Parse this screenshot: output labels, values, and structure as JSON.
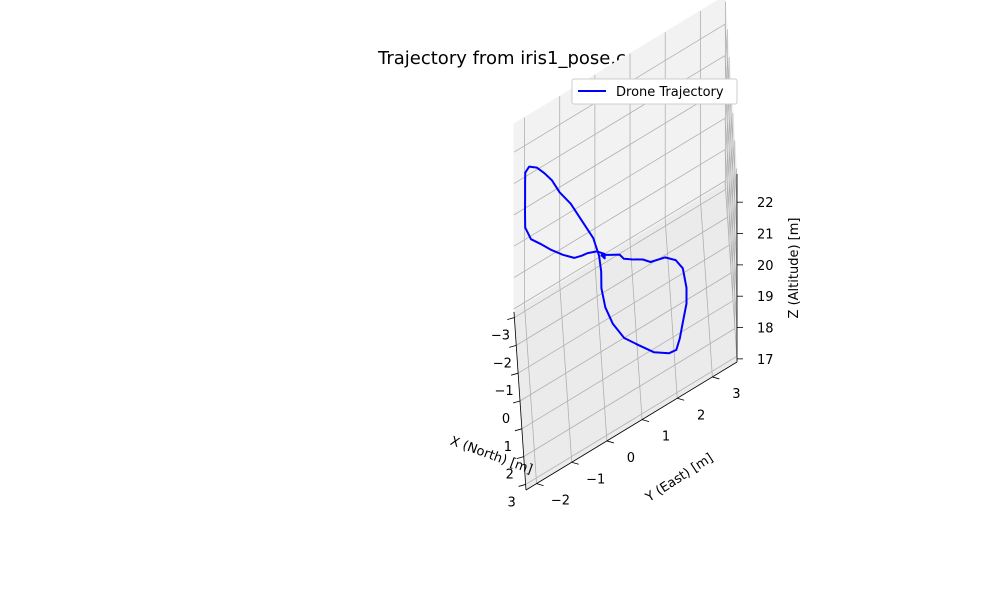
{
  "chart_data": {
    "type": "line",
    "projection": "3d",
    "title": "Trajectory from iris1_pose.csv",
    "xlabel": "X (North) [m]",
    "ylabel": "Y (East) [m]",
    "zlabel": "Z (Altitude) [m]",
    "xlim": [
      -3.2,
      3.2
    ],
    "ylim": [
      -2.3,
      3.7
    ],
    "zlim": [
      16.9,
      22.9
    ],
    "xticks": [
      -3,
      -2,
      -1,
      0,
      1,
      2,
      3
    ],
    "yticks": [
      -2,
      -1,
      0,
      1,
      2,
      3
    ],
    "zticks": [
      17,
      18,
      19,
      20,
      21,
      22
    ],
    "xtick_labels": [
      "−3",
      "−2",
      "−1",
      "0",
      "1",
      "2",
      "3"
    ],
    "ytick_labels": [
      "−2",
      "−1",
      "0",
      "1",
      "2",
      "3"
    ],
    "ztick_labels": [
      "17",
      "18",
      "19",
      "20",
      "21",
      "22"
    ],
    "grid": true,
    "legend_position": "top-right",
    "colors": {
      "series": "#0000ff",
      "pane_side": "#f2f2f2",
      "pane_floor": "#ebebeb",
      "grid": "#b0b0b0"
    },
    "series": [
      {
        "name": "Drone Trajectory",
        "points": [
          [
            0.0,
            0.0,
            20.0
          ],
          [
            0.25,
            0.25,
            20.05
          ],
          [
            0.6,
            0.5,
            20.2
          ],
          [
            1.0,
            0.6,
            20.35
          ],
          [
            1.4,
            0.8,
            20.55
          ],
          [
            1.8,
            1.1,
            20.7
          ],
          [
            2.1,
            1.3,
            20.75
          ],
          [
            2.3,
            1.7,
            20.8
          ],
          [
            2.4,
            2.0,
            20.6
          ],
          [
            2.4,
            2.2,
            20.2
          ],
          [
            2.5,
            2.3,
            19.6
          ],
          [
            2.5,
            2.3,
            19.1
          ],
          [
            2.6,
            2.2,
            18.7
          ],
          [
            2.7,
            2.1,
            18.3
          ],
          [
            2.7,
            2.0,
            18.0
          ],
          [
            2.5,
            1.8,
            17.85
          ],
          [
            2.1,
            1.4,
            17.8
          ],
          [
            1.6,
            1.0,
            17.85
          ],
          [
            1.2,
            0.6,
            18.0
          ],
          [
            0.8,
            0.3,
            18.3
          ],
          [
            0.5,
            0.1,
            18.7
          ],
          [
            0.3,
            0.0,
            19.2
          ],
          [
            0.15,
            0.0,
            19.6
          ],
          [
            0.0,
            -0.05,
            20.0
          ],
          [
            -0.3,
            -0.2,
            20.4
          ],
          [
            -0.7,
            -0.5,
            20.8
          ],
          [
            -1.1,
            -0.8,
            21.2
          ],
          [
            -1.4,
            -1.1,
            21.5
          ],
          [
            -1.7,
            -1.3,
            21.75
          ],
          [
            -2.0,
            -1.5,
            21.85
          ],
          [
            -2.3,
            -1.7,
            21.9
          ],
          [
            -2.6,
            -1.9,
            21.8
          ],
          [
            -2.8,
            -2.0,
            21.5
          ],
          [
            -2.9,
            -2.0,
            21.1
          ],
          [
            -2.9,
            -2.0,
            20.6
          ],
          [
            -2.95,
            -2.0,
            20.1
          ],
          [
            -2.85,
            -2.0,
            19.7
          ],
          [
            -2.6,
            -1.85,
            19.45
          ],
          [
            -2.3,
            -1.6,
            19.4
          ],
          [
            -1.9,
            -1.3,
            19.35
          ],
          [
            -1.5,
            -1.0,
            19.35
          ],
          [
            -1.1,
            -0.7,
            19.4
          ],
          [
            -0.8,
            -0.5,
            19.6
          ],
          [
            -0.5,
            -0.35,
            19.85
          ],
          [
            -0.2,
            -0.1,
            20.0
          ],
          [
            0.1,
            0.1,
            20.05
          ],
          [
            0.15,
            0.1,
            19.95
          ],
          [
            0.0,
            0.0,
            20.0
          ]
        ]
      }
    ]
  }
}
